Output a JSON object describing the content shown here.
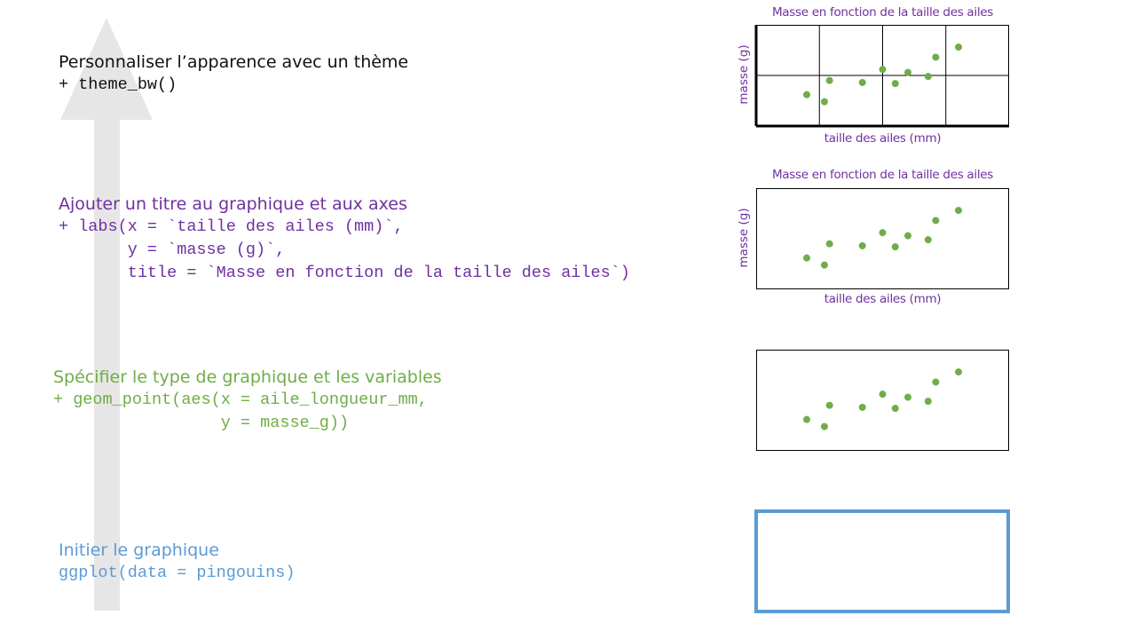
{
  "steps": [
    {
      "id": "theme",
      "title": "Personnaliser l’apparence avec un thème",
      "code": "+ theme_bw()",
      "color": "#111111"
    },
    {
      "id": "labs",
      "title": "Ajouter un titre au graphique et aux axes",
      "code": "+ labs(x = `taille des ailes (mm)`,\n       y = `masse (g)`,\n       title = `Masse en fonction de la taille des ailes`)",
      "color": "#7030a0"
    },
    {
      "id": "geom",
      "title": "Spécifier le type de graphique et les variables",
      "code": "+ geom_point(aes(x = aile_longueur_mm,\n                 y = masse_g))",
      "color": "#70ad47"
    },
    {
      "id": "init",
      "title": "Initier le graphique",
      "code": "ggplot(data = pingouins)",
      "color": "#5b9bd5"
    }
  ],
  "plots": {
    "theme": {
      "title": "Masse en fonction de la taille des ailes",
      "xlabel": "taille des ailes (mm)",
      "ylabel": "masse (g)"
    },
    "labs": {
      "title": "Masse en fonction de la taille des ailes",
      "xlabel": "taille des ailes (mm)",
      "ylabel": "masse (g)"
    }
  },
  "chart_data": [
    {
      "panel": "theme_bw",
      "type": "scatter",
      "grid": true,
      "title": "Masse en fonction de la taille des ailes",
      "xlabel": "taille des ailes (mm)",
      "ylabel": "masse (g)",
      "x": [
        0.2,
        0.29,
        0.27,
        0.42,
        0.55,
        0.5,
        0.6,
        0.68,
        0.71,
        0.8
      ],
      "y": [
        0.31,
        0.45,
        0.24,
        0.43,
        0.42,
        0.56,
        0.53,
        0.49,
        0.68,
        0.78
      ],
      "color": "#70ad47"
    },
    {
      "panel": "labs",
      "type": "scatter",
      "grid": false,
      "title": "Masse en fonction de la taille des ailes",
      "xlabel": "taille des ailes (mm)",
      "ylabel": "masse (g)",
      "x": [
        0.2,
        0.29,
        0.27,
        0.42,
        0.55,
        0.5,
        0.6,
        0.68,
        0.71,
        0.8
      ],
      "y": [
        0.31,
        0.45,
        0.24,
        0.43,
        0.42,
        0.56,
        0.53,
        0.49,
        0.68,
        0.78
      ],
      "color": "#70ad47"
    },
    {
      "panel": "geom_point",
      "type": "scatter",
      "grid": false,
      "x": [
        0.2,
        0.29,
        0.27,
        0.42,
        0.55,
        0.5,
        0.6,
        0.68,
        0.71,
        0.8
      ],
      "y": [
        0.31,
        0.45,
        0.24,
        0.43,
        0.42,
        0.56,
        0.53,
        0.49,
        0.68,
        0.78
      ],
      "color": "#70ad47"
    }
  ],
  "colors": {
    "arrow": "#e7e6e6",
    "blank_canvas_border": "#5b9bd5",
    "points": "#70ad47"
  }
}
